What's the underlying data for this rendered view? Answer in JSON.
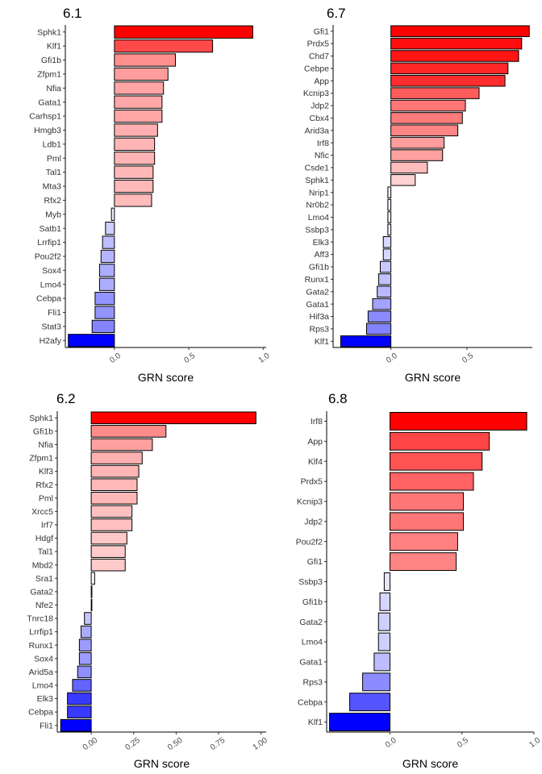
{
  "chart_data": [
    {
      "type": "bar",
      "orientation": "horizontal",
      "title": "6.1",
      "xlabel": "GRN score",
      "xlim": [
        -0.33,
        1.02
      ],
      "xticks": [
        0,
        0.5,
        1
      ],
      "xtick_labels": [
        "0.0",
        "0.5",
        "1.0"
      ],
      "categories": [
        "Sphk1",
        "Klf1",
        "Gfi1b",
        "Zfpm1",
        "Nfia",
        "Gata1",
        "Carhsp1",
        "Hmgb3",
        "Ldb1",
        "Pml",
        "Tal1",
        "Mta3",
        "Rfx2",
        "Myb",
        "Satb1",
        "Lrrfip1",
        "Pou2f2",
        "Sox4",
        "Lmo4",
        "Cebpa",
        "Fli1",
        "Stat3",
        "H2afy"
      ],
      "values": [
        0.93,
        0.66,
        0.41,
        0.36,
        0.33,
        0.32,
        0.32,
        0.29,
        0.27,
        0.27,
        0.26,
        0.26,
        0.25,
        -0.02,
        -0.06,
        -0.08,
        -0.09,
        -0.1,
        -0.1,
        -0.13,
        -0.13,
        -0.15,
        -0.31
      ]
    },
    {
      "type": "bar",
      "orientation": "horizontal",
      "title": "6.7",
      "xlabel": "GRN score",
      "xlim": [
        -0.38,
        0.93
      ],
      "xticks": [
        0,
        0.5
      ],
      "xtick_labels": [
        "0.0",
        "0.5"
      ],
      "categories": [
        "Gfi1",
        "Prdx5",
        "Chd7",
        "Cebpe",
        "App",
        "Kcnip3",
        "Jdp2",
        "Cbx4",
        "Arid3a",
        "Irf8",
        "Nfic",
        "Csde1",
        "Sphk1",
        "Nrip1",
        "Nr0b2",
        "Lmo4",
        "Ssbp3",
        "Elk3",
        "Aff3",
        "Gfi1b",
        "Runx1",
        "Gata2",
        "Gata1",
        "Hif3a",
        "Rps3",
        "Klf1"
      ],
      "values": [
        0.91,
        0.86,
        0.84,
        0.77,
        0.75,
        0.58,
        0.49,
        0.47,
        0.44,
        0.35,
        0.34,
        0.24,
        0.16,
        -0.02,
        -0.02,
        -0.02,
        -0.02,
        -0.05,
        -0.05,
        -0.07,
        -0.08,
        -0.09,
        -0.12,
        -0.15,
        -0.16,
        -0.33
      ]
    },
    {
      "type": "bar",
      "orientation": "horizontal",
      "title": "6.2",
      "xlabel": "GRN score",
      "xlim": [
        -0.2,
        1.03
      ],
      "xticks": [
        0,
        0.25,
        0.5,
        0.75,
        1
      ],
      "xtick_labels": [
        "0.00",
        "0.25",
        "0.50",
        "0.75",
        "1.00"
      ],
      "categories": [
        "Sphk1",
        "Gfi1b",
        "Nfia",
        "Zfpm1",
        "Klf3",
        "Rfx2",
        "Pml",
        "Xrcc5",
        "Irf7",
        "Hdgf",
        "Tal1",
        "Mbd2",
        "Sra1",
        "Gata2",
        "Nfe2",
        "Tnrc18",
        "Lrrfip1",
        "Runx1",
        "Sox4",
        "Arid5a",
        "Lmo4",
        "Elk3",
        "Cebpa",
        "Fli1"
      ],
      "values": [
        0.97,
        0.44,
        0.36,
        0.3,
        0.28,
        0.27,
        0.27,
        0.24,
        0.24,
        0.21,
        0.2,
        0.2,
        0.02,
        0.0,
        0.0,
        -0.04,
        -0.06,
        -0.07,
        -0.07,
        -0.08,
        -0.11,
        -0.14,
        -0.14,
        -0.18
      ]
    },
    {
      "type": "bar",
      "orientation": "horizontal",
      "title": "6.8",
      "xlabel": "GRN score",
      "xlim": [
        -0.44,
        1.0
      ],
      "xticks": [
        0,
        0.5,
        1
      ],
      "xtick_labels": [
        "0.0",
        "0.5",
        "1.0"
      ],
      "categories": [
        "Irf8",
        "App",
        "Klf4",
        "Prdx5",
        "Kcnip3",
        "Jdp2",
        "Pou2f2",
        "Gfi1",
        "Ssbp3",
        "Gfi1b",
        "Gata2",
        "Lmo4",
        "Gata1",
        "Rps3",
        "Cebpa",
        "Klf1"
      ],
      "values": [
        0.95,
        0.69,
        0.64,
        0.58,
        0.51,
        0.51,
        0.47,
        0.46,
        -0.04,
        -0.07,
        -0.08,
        -0.08,
        -0.11,
        -0.19,
        -0.28,
        -0.42
      ]
    }
  ]
}
